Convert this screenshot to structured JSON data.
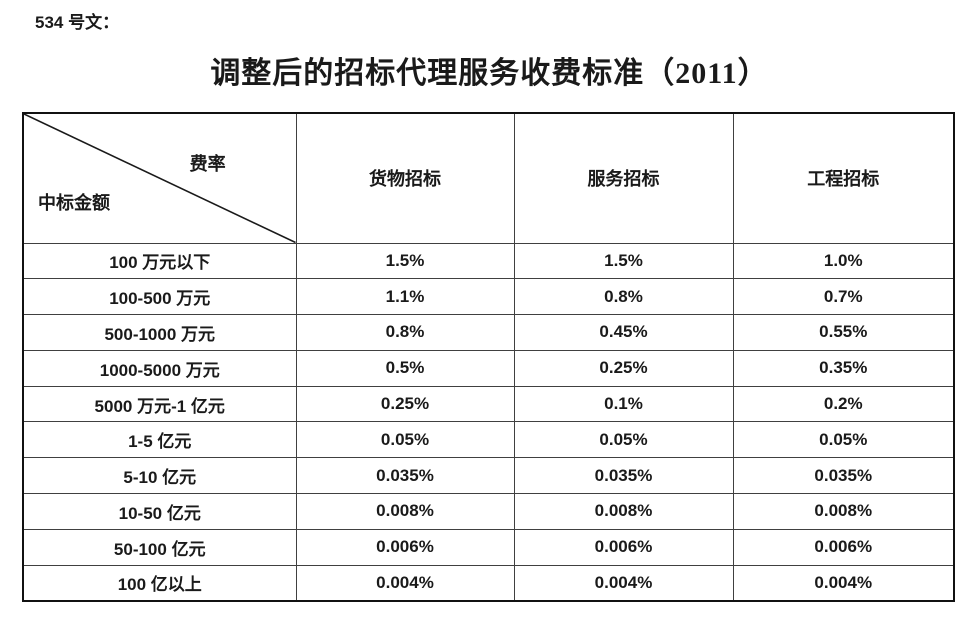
{
  "page": {
    "doc_label": "534 号文：",
    "title": "调整后的招标代理服务收费标准（2011）"
  },
  "table": {
    "corner": {
      "top_right": "费率",
      "bottom_left": "中标金额"
    },
    "columns": [
      "货物招标",
      "服务招标",
      "工程招标"
    ],
    "rows": [
      {
        "label": "100 万元以下",
        "values": [
          "1.5%",
          "1.5%",
          "1.0%"
        ]
      },
      {
        "label": "100-500 万元",
        "values": [
          "1.1%",
          "0.8%",
          "0.7%"
        ]
      },
      {
        "label": "500-1000 万元",
        "values": [
          "0.8%",
          "0.45%",
          "0.55%"
        ]
      },
      {
        "label": "1000-5000 万元",
        "values": [
          "0.5%",
          "0.25%",
          "0.35%"
        ]
      },
      {
        "label": "5000 万元-1 亿元",
        "values": [
          "0.25%",
          "0.1%",
          "0.2%"
        ]
      },
      {
        "label": "1-5 亿元",
        "values": [
          "0.05%",
          "0.05%",
          "0.05%"
        ]
      },
      {
        "label": "5-10 亿元",
        "values": [
          "0.035%",
          "0.035%",
          "0.035%"
        ]
      },
      {
        "label": "10-50 亿元",
        "values": [
          "0.008%",
          "0.008%",
          "0.008%"
        ]
      },
      {
        "label": "50-100 亿元",
        "values": [
          "0.006%",
          "0.006%",
          "0.006%"
        ]
      },
      {
        "label": "100 亿以上",
        "values": [
          "0.004%",
          "0.004%",
          "0.004%"
        ]
      }
    ]
  }
}
